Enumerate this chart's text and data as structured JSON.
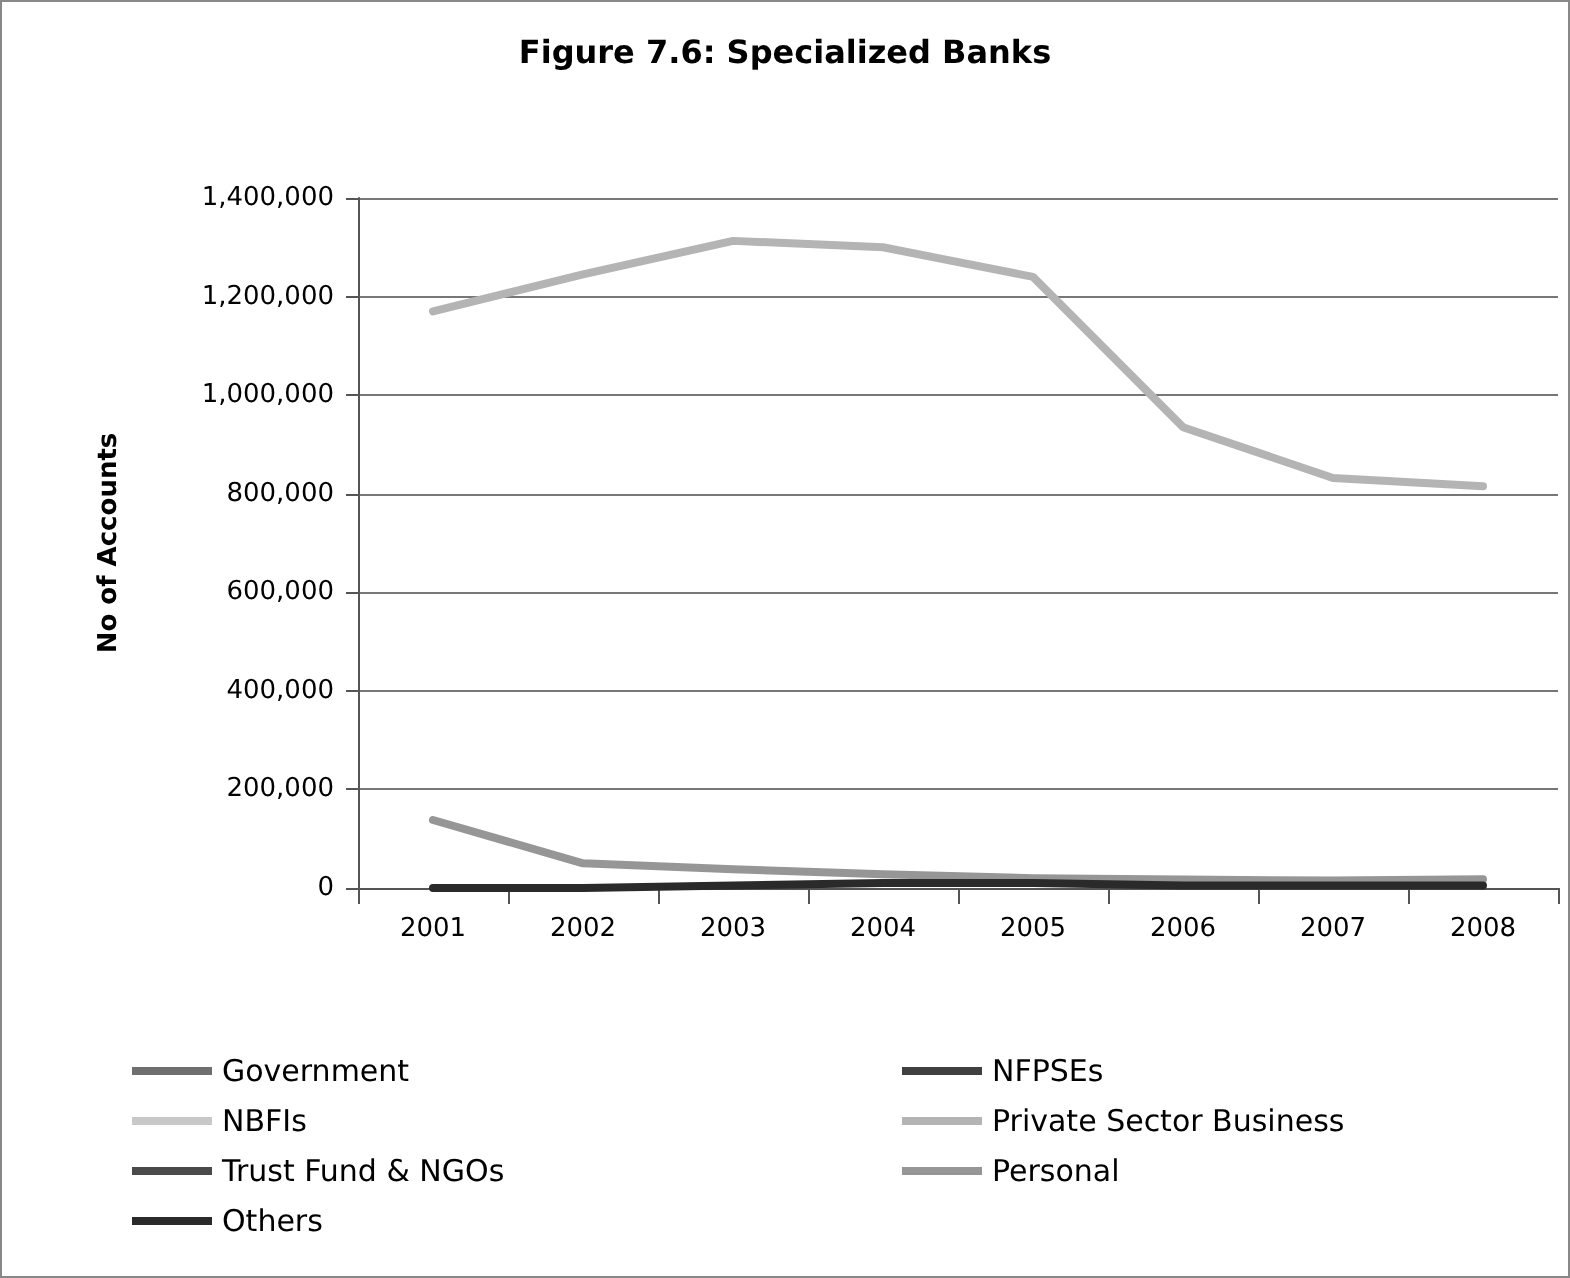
{
  "chart_data": {
    "type": "line",
    "title": "Figure 7.6: Specialized Banks",
    "ylabel": "No of Accounts",
    "categories": [
      "2001",
      "2002",
      "2003",
      "2004",
      "2005",
      "2006",
      "2007",
      "2008"
    ],
    "series": [
      {
        "name": "Government",
        "color": "#6e6e6e",
        "values": [
          null,
          null,
          null,
          null,
          null,
          null,
          null,
          null
        ]
      },
      {
        "name": "NFPSEs",
        "color": "#404040",
        "values": [
          null,
          null,
          null,
          null,
          null,
          null,
          null,
          null
        ]
      },
      {
        "name": "NBFIs",
        "color": "#c8c8c8",
        "values": [
          null,
          null,
          null,
          null,
          null,
          null,
          null,
          null
        ]
      },
      {
        "name": "Private Sector Business",
        "color": "#b4b4b4",
        "values": [
          1170000,
          1245000,
          1313000,
          1300000,
          1240000,
          935000,
          832000,
          815000
        ]
      },
      {
        "name": "Trust Fund & NGOs",
        "color": "#4a4a4a",
        "values": [
          null,
          null,
          null,
          null,
          null,
          null,
          null,
          null
        ]
      },
      {
        "name": "Personal",
        "color": "#969696",
        "values": [
          138000,
          50000,
          38000,
          28000,
          20000,
          17000,
          15000,
          18000
        ]
      },
      {
        "name": "Others",
        "color": "#2a2a2a",
        "values": [
          0,
          0,
          5000,
          10000,
          10000,
          5000,
          5000,
          5000
        ]
      }
    ],
    "ylim": [
      0,
      1400000
    ],
    "yticks": [
      0,
      {
        "value": 200000,
        "label": "200,000"
      },
      {
        "value": 400000,
        "label": "400,000"
      },
      {
        "value": 600000,
        "label": "600,000"
      },
      {
        "value": 800000,
        "label": "800,000"
      },
      {
        "value": 1000000,
        "label": "1,000,000"
      },
      {
        "value": 1200000,
        "label": "1,200,000"
      },
      {
        "value": 1400000,
        "label": "1,400,000"
      }
    ],
    "grid": "y",
    "legend": "bottom",
    "marker": "none",
    "line_style": "solid"
  }
}
